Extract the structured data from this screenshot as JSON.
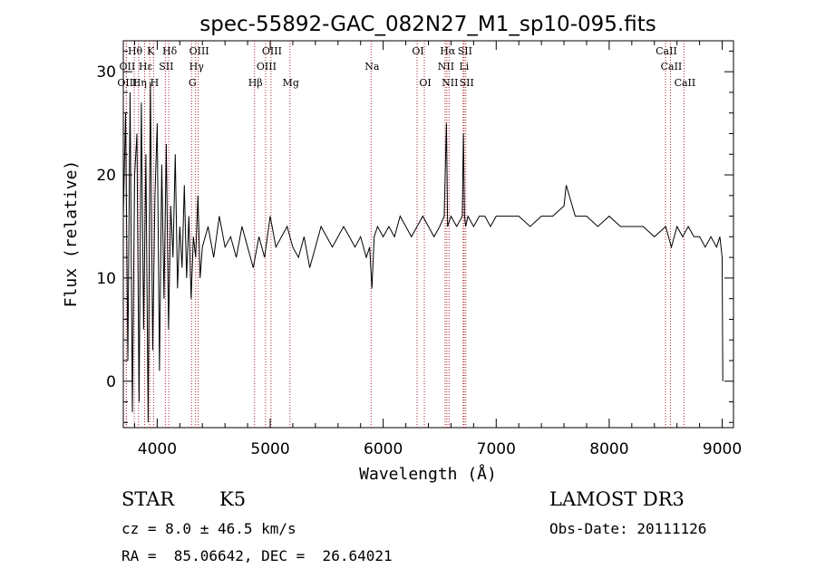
{
  "footer": {
    "object_class": "STAR",
    "subclass": "K5",
    "survey": "LAMOST DR3",
    "cz": "cz = 8.0 ± 46.5 km/s",
    "obs_date": "Obs-Date: 20111126",
    "coords": "RA =  85.06642, DEC =  26.64021"
  },
  "colors": {
    "spectrum": "#000000",
    "line_marker": "#b0202a",
    "axes": "#000000"
  },
  "chart_data": {
    "type": "line",
    "title": "spec-55892-GAC_082N27_M1_sp10-095.fits",
    "xlabel": "Wavelength (Å)",
    "ylabel": "Flux (relative)",
    "xlim": [
      3700,
      9100
    ],
    "ylim": [
      -4.5,
      33
    ],
    "xticks": [
      4000,
      5000,
      6000,
      7000,
      8000,
      9000
    ],
    "yticks": [
      0,
      10,
      20,
      30
    ],
    "grid": false,
    "series": [
      {
        "x": [
          3700,
          3720,
          3740,
          3760,
          3780,
          3800,
          3820,
          3840,
          3860,
          3880,
          3900,
          3920,
          3940,
          3960,
          3980,
          4000,
          4020,
          4040,
          4060,
          4080,
          4100,
          4120,
          4140,
          4160,
          4180,
          4200,
          4220,
          4240,
          4260,
          4280,
          4300,
          4320,
          4340,
          4360,
          4380,
          4400,
          4450,
          4500,
          4550,
          4600,
          4650,
          4700,
          4750,
          4800,
          4850,
          4900,
          4950,
          5000,
          5050,
          5100,
          5150,
          5200,
          5250,
          5300,
          5350,
          5400,
          5450,
          5500,
          5550,
          5600,
          5650,
          5700,
          5750,
          5800,
          5850,
          5880,
          5900,
          5920,
          5950,
          6000,
          6050,
          6100,
          6150,
          6200,
          6250,
          6300,
          6350,
          6400,
          6450,
          6500,
          6540,
          6560,
          6565,
          6570,
          6600,
          6650,
          6700,
          6710,
          6720,
          6730,
          6750,
          6800,
          6850,
          6900,
          6950,
          7000,
          7100,
          7200,
          7300,
          7400,
          7500,
          7600,
          7620,
          7700,
          7800,
          7900,
          8000,
          8100,
          8200,
          8300,
          8400,
          8500,
          8550,
          8600,
          8650,
          8700,
          8750,
          8800,
          8850,
          8900,
          8950,
          8980,
          9000,
          9005
        ],
        "y": [
          16,
          26,
          2,
          28,
          -3,
          20,
          24,
          -2,
          27,
          5,
          22,
          -4,
          29,
          3,
          18,
          25,
          1,
          21,
          8,
          23,
          5,
          17,
          12,
          22,
          9,
          15,
          11,
          19,
          10,
          16,
          8,
          14,
          12,
          18,
          10,
          13,
          15,
          12,
          16,
          13,
          14,
          12,
          15,
          13,
          11,
          14,
          12,
          16,
          13,
          14,
          15,
          13,
          12,
          14,
          11,
          13,
          15,
          14,
          13,
          14,
          15,
          14,
          13,
          14,
          12,
          13,
          9,
          14,
          15,
          14,
          15,
          14,
          16,
          15,
          14,
          15,
          16,
          15,
          14,
          15,
          16,
          25,
          20,
          15,
          16,
          15,
          16,
          24,
          16,
          15,
          16,
          15,
          16,
          16,
          15,
          16,
          16,
          16,
          15,
          16,
          16,
          17,
          19,
          16,
          16,
          15,
          16,
          15,
          15,
          15,
          14,
          15,
          13,
          15,
          14,
          15,
          14,
          14,
          13,
          14,
          13,
          14,
          12,
          0
        ]
      }
    ],
    "line_ids": [
      {
        "label": "Hθ",
        "x": 3797,
        "row": 0
      },
      {
        "label": "K",
        "x": 3934,
        "row": 0
      },
      {
        "label": "Hδ",
        "x": 4102,
        "row": 0
      },
      {
        "label": "OIII",
        "x": 4363,
        "row": 0
      },
      {
        "label": "OIII",
        "x": 5007,
        "row": 0
      },
      {
        "label": "OI",
        "x": 6300,
        "row": 0
      },
      {
        "label": "Hα",
        "x": 6563,
        "row": 0
      },
      {
        "label": "SII",
        "x": 6716,
        "row": 0
      },
      {
        "label": "CaII",
        "x": 8498,
        "row": 0
      },
      {
        "label": "OII",
        "x": 3727,
        "row": 1
      },
      {
        "label": "Hε",
        "x": 3889,
        "row": 1
      },
      {
        "label": "SII",
        "x": 4072,
        "row": 1
      },
      {
        "label": "Hγ",
        "x": 4340,
        "row": 1
      },
      {
        "label": "OIII",
        "x": 4959,
        "row": 1
      },
      {
        "label": "Na",
        "x": 5893,
        "row": 1
      },
      {
        "label": "NII",
        "x": 6548,
        "row": 1
      },
      {
        "label": "Li",
        "x": 6708,
        "row": 1
      },
      {
        "label": "CaII",
        "x": 8542,
        "row": 1
      },
      {
        "label": "OIII",
        "x": 3727,
        "row": 2
      },
      {
        "label": "Hη",
        "x": 3835,
        "row": 2
      },
      {
        "label": "H",
        "x": 3968,
        "row": 2
      },
      {
        "label": "G",
        "x": 4304,
        "row": 2
      },
      {
        "label": "Hβ",
        "x": 4861,
        "row": 2
      },
      {
        "label": "Mg",
        "x": 5175,
        "row": 2
      },
      {
        "label": "OI",
        "x": 6364,
        "row": 2
      },
      {
        "label": "NII",
        "x": 6583,
        "row": 2
      },
      {
        "label": "SII",
        "x": 6731,
        "row": 2
      },
      {
        "label": "CaII",
        "x": 8662,
        "row": 2
      }
    ]
  }
}
